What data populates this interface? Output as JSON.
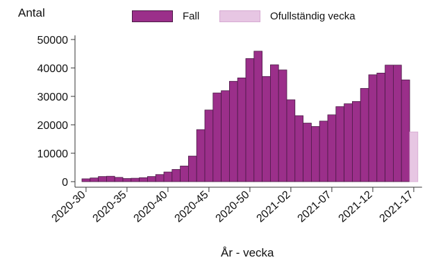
{
  "colors": {
    "fall": "#9b2f8a",
    "fall_border": "#4a1a45",
    "incomplete": "#e7c6e3",
    "incomplete_border": "#d6a9d1",
    "axis": "#333333"
  },
  "chart_data": {
    "type": "bar",
    "ylabel": "Antal",
    "xlabel": "År - vecka",
    "ylim": [
      0,
      50000
    ],
    "yticks": [
      0,
      10000,
      20000,
      30000,
      40000,
      50000
    ],
    "xtick_labels": [
      "2020-30",
      "2020-35",
      "2020-40",
      "2020-45",
      "2020-50",
      "2021-02",
      "2021-07",
      "2021-12",
      "2021-17"
    ],
    "legend": {
      "position": "top",
      "entries": [
        "Fall",
        "Ofullständig vecka"
      ]
    },
    "categories": [
      "2020-30",
      "2020-31",
      "2020-32",
      "2020-33",
      "2020-34",
      "2020-35",
      "2020-36",
      "2020-37",
      "2020-38",
      "2020-39",
      "2020-40",
      "2020-41",
      "2020-42",
      "2020-43",
      "2020-44",
      "2020-45",
      "2020-46",
      "2020-47",
      "2020-48",
      "2020-49",
      "2020-50",
      "2020-51",
      "2020-52",
      "2020-53",
      "2021-01",
      "2021-02",
      "2021-03",
      "2021-04",
      "2021-05",
      "2021-06",
      "2021-07",
      "2021-08",
      "2021-09",
      "2021-10",
      "2021-11",
      "2021-12",
      "2021-13",
      "2021-14",
      "2021-15",
      "2021-16",
      "2021-17"
    ],
    "series": [
      {
        "name": "Fall",
        "values": [
          1000,
          1300,
          1800,
          1900,
          1500,
          1100,
          1200,
          1400,
          1800,
          2500,
          3400,
          4300,
          5500,
          9000,
          18300,
          25200,
          31200,
          32000,
          35300,
          36500,
          43300,
          45900,
          37000,
          41100,
          39300,
          28800,
          23200,
          20600,
          19400,
          21300,
          23500,
          26400,
          27400,
          28200,
          32800,
          37600,
          38200,
          41000,
          41000,
          35800,
          null
        ]
      },
      {
        "name": "Ofullständig vecka",
        "values": [
          null,
          null,
          null,
          null,
          null,
          null,
          null,
          null,
          null,
          null,
          null,
          null,
          null,
          null,
          null,
          null,
          null,
          null,
          null,
          null,
          null,
          null,
          null,
          null,
          null,
          null,
          null,
          null,
          null,
          null,
          null,
          null,
          null,
          null,
          null,
          null,
          null,
          null,
          null,
          null,
          17500
        ]
      }
    ]
  }
}
